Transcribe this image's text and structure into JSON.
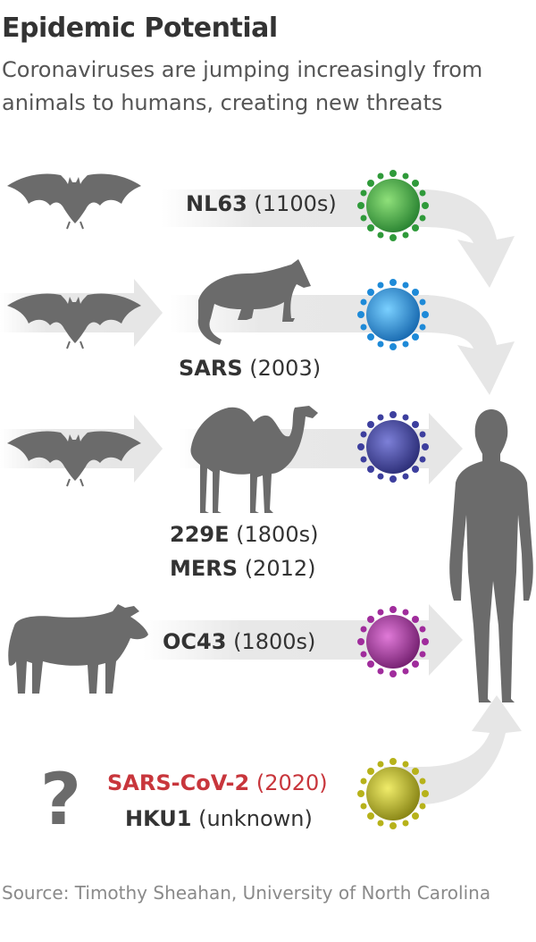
{
  "header": {
    "title": "Epidemic Potential",
    "subtitle": "Coronaviruses are jumping increasingly from animals to humans, creating new threats"
  },
  "viruses": [
    {
      "name": "NL63",
      "year": "(1100s)",
      "color": "#2f9a3a"
    },
    {
      "name": "SARS",
      "year": "(2003)",
      "color": "#1e8ad8"
    },
    {
      "name": "229E",
      "year": "(1800s)",
      "color": "#3d3f9e"
    },
    {
      "name": "MERS",
      "year": "(2012)"
    },
    {
      "name": "OC43",
      "year": "(1800s)",
      "color": "#a02c9c"
    },
    {
      "name": "SARS-CoV-2",
      "year": "(2020)",
      "color": "#c8363c"
    },
    {
      "name": "HKU1",
      "year": "(unknown)",
      "color": "#b7b21a"
    }
  ],
  "unknown_mark": "?",
  "source": "Source: Timothy Sheahan, University of North Carolina",
  "colors": {
    "animal": "#6b6b6b",
    "arrow": "#e6e6e6",
    "highlight": "#c8363c"
  },
  "icons": [
    "bat-icon",
    "civet-icon",
    "camel-icon",
    "cow-icon",
    "human-icon",
    "virus-icon"
  ]
}
